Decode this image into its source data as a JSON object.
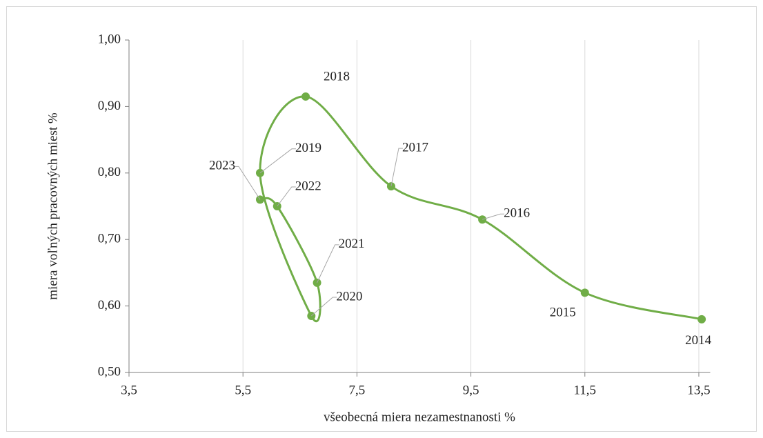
{
  "chart_data": {
    "type": "scatter",
    "x_label": "všeobecná miera nezamestnanosti %",
    "y_label": "miera voľných pracovných miest %",
    "labels": [
      "2014",
      "2015",
      "2016",
      "2017",
      "2018",
      "2019",
      "2020",
      "2021",
      "2022",
      "2023"
    ],
    "series": [
      {
        "color": "#70ad47",
        "x": [
          13.55,
          11.5,
          9.7,
          8.1,
          6.6,
          5.8,
          6.7,
          6.8,
          6.1,
          5.8
        ],
        "values": [
          0.58,
          0.62,
          0.73,
          0.78,
          0.915,
          0.8,
          0.585,
          0.635,
          0.75,
          0.76
        ]
      }
    ],
    "xlim": [
      3.5,
      13.7
    ],
    "xticks": [
      {
        "value": 3.5,
        "label": "3,5"
      },
      {
        "value": 5.5,
        "label": "5,5"
      },
      {
        "value": 7.5,
        "label": "7,5"
      },
      {
        "value": 9.5,
        "label": "9,5"
      },
      {
        "value": 11.5,
        "label": "11,5"
      },
      {
        "value": 13.5,
        "label": "13,5"
      }
    ],
    "ylim": [
      0.5,
      1.0
    ],
    "yticks": [
      {
        "value": 0.5,
        "label": "0,50"
      },
      {
        "value": 0.6,
        "label": "0,60"
      },
      {
        "value": 0.7,
        "label": "0,70"
      },
      {
        "value": 0.8,
        "label": "0,80"
      },
      {
        "value": 0.9,
        "label": "0,90"
      },
      {
        "value": 1.0,
        "label": "1,00"
      }
    ],
    "grid": true,
    "smooth": true
  }
}
